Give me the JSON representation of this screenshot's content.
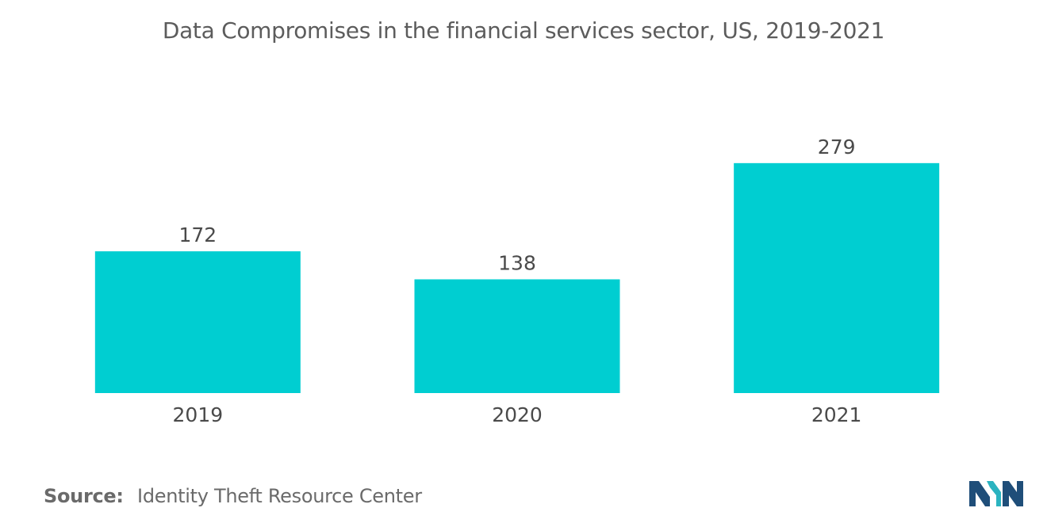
{
  "chart_data": {
    "type": "bar",
    "title": "Data Compromises in the financial services sector, US, 2019-2021",
    "categories": [
      "2019",
      "2020",
      "2021"
    ],
    "values": [
      172,
      138,
      279
    ],
    "data_labels": [
      "172",
      "138",
      "279"
    ],
    "xlabel": "",
    "ylabel": "",
    "ylim": [
      0,
      300
    ],
    "grid": false,
    "legend": "none",
    "bar_color": "#00ced1"
  },
  "source": {
    "label": "Source:",
    "text": "Identity Theft Resource Center"
  },
  "logo": {
    "icon": "mordor-intelligence-logo-icon",
    "colors": [
      "#1f4e79",
      "#2bb3c0"
    ]
  }
}
